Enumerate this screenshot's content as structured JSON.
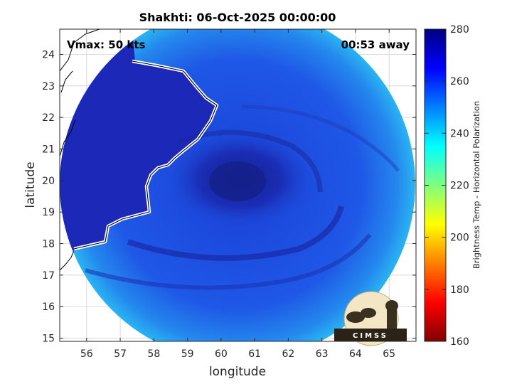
{
  "chart_data": {
    "type": "heatmap",
    "title": "Shakhti: 06-Oct-2025 00:00:00",
    "xlabel": "longitude",
    "ylabel": "latitude",
    "x_ticks": [
      56,
      57,
      58,
      59,
      60,
      61,
      62,
      63,
      64,
      65
    ],
    "y_ticks": [
      15,
      16,
      17,
      18,
      19,
      20,
      21,
      22,
      23,
      24
    ],
    "xlim": [
      55.2,
      65.8
    ],
    "ylim": [
      14.9,
      24.8
    ],
    "grid": true,
    "annotations": {
      "vmax": "Vmax: 50 kts",
      "time_offset": "00:53 away"
    },
    "colorbar": {
      "label": "Brightness Temp - Horizontal Polarization",
      "range": [
        160,
        280
      ],
      "ticks": [
        160,
        180,
        200,
        220,
        240,
        260,
        280
      ],
      "colormap": "jet"
    },
    "storm_center": {
      "lon": 60.8,
      "lat": 20.0
    },
    "swath_extent": {
      "lon": [
        55.3,
        65.7
      ],
      "lat": [
        14.9,
        24.8
      ]
    },
    "features": [
      {
        "name": "land",
        "brightness_temp": 268
      },
      {
        "name": "ocean background",
        "brightness_temp": 252
      },
      {
        "name": "swath edge",
        "brightness_temp": 238
      },
      {
        "name": "storm core",
        "brightness_temp": 270
      }
    ],
    "logo": "CIMSS"
  },
  "colors": {
    "land": "#1e2ab8",
    "ocean": "#1f5ae8",
    "edge": "#29a8f0",
    "core": "#15208f",
    "coast": "#ffffff"
  }
}
